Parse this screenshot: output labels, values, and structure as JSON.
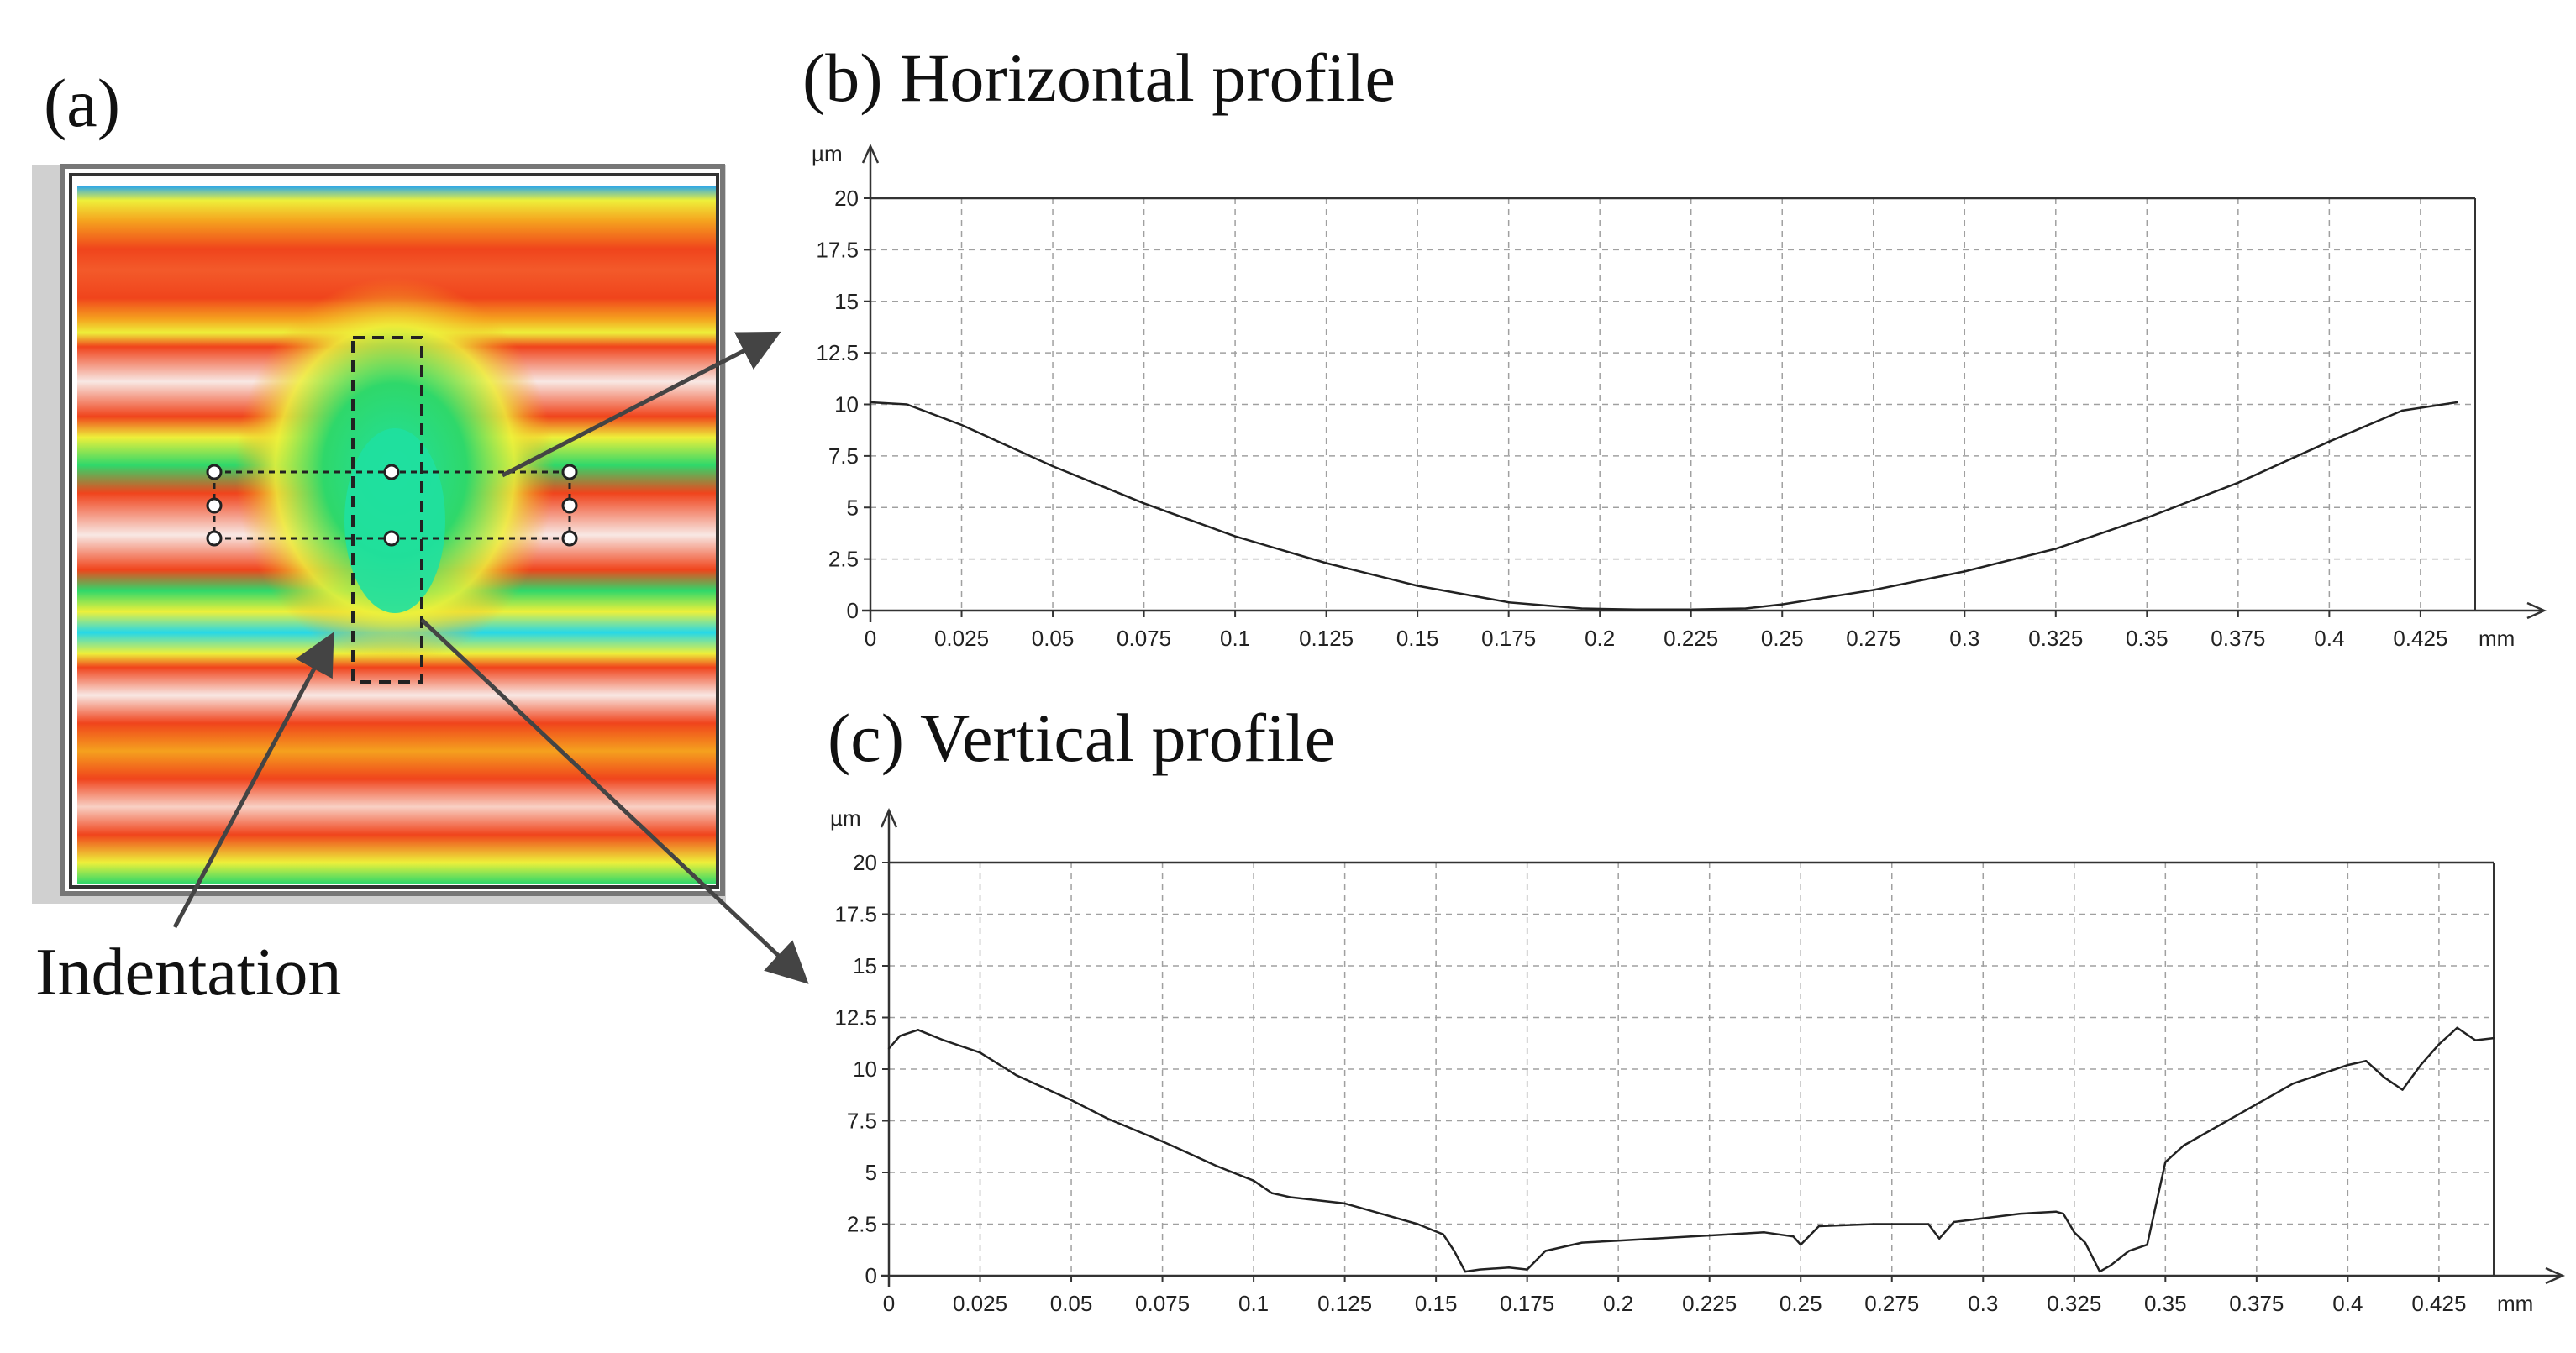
{
  "labels": {
    "panel_a": "(a)",
    "indentation": "Indentation"
  },
  "colors": {
    "map_red": "#f0441c",
    "map_orange": "#f5a11e",
    "map_yellow": "#eef03a",
    "map_green": "#2fd86a",
    "map_cyan": "#26d8e8",
    "map_white": "#f8e8e4",
    "arrow": "#444444",
    "grid": "#a0a0a0",
    "curve": "#222222"
  },
  "chart_data": [
    {
      "type": "line",
      "title": "(b) Horizontal profile",
      "ylabel": "µm",
      "xunit": "mm",
      "xlim": [
        0,
        0.44
      ],
      "ylim": [
        0,
        20
      ],
      "grid": true,
      "xticks": [
        "0",
        "0.025",
        "0.05",
        "0.075",
        "0.1",
        "0.125",
        "0.15",
        "0.175",
        "0.2",
        "0.225",
        "0.25",
        "0.275",
        "0.3",
        "0.325",
        "0.35",
        "0.375",
        "0.4",
        "0.425"
      ],
      "yticks": [
        "0",
        "2.5",
        "5",
        "7.5",
        "10",
        "12.5",
        "15",
        "17.5",
        "20"
      ],
      "x": [
        0,
        0.01,
        0.025,
        0.05,
        0.075,
        0.1,
        0.125,
        0.15,
        0.175,
        0.195,
        0.21,
        0.225,
        0.24,
        0.25,
        0.275,
        0.3,
        0.325,
        0.35,
        0.375,
        0.4,
        0.42,
        0.435
      ],
      "y": [
        10.1,
        10.0,
        9.0,
        7.0,
        5.2,
        3.6,
        2.3,
        1.2,
        0.4,
        0.1,
        0.05,
        0.05,
        0.1,
        0.3,
        1.0,
        1.9,
        3.0,
        4.5,
        6.2,
        8.2,
        9.7,
        10.1
      ]
    },
    {
      "type": "line",
      "title": "(c) Vertical profile",
      "ylabel": "µm",
      "xunit": "mm",
      "xlim": [
        0,
        0.44
      ],
      "ylim": [
        0,
        20
      ],
      "grid": true,
      "xticks": [
        "0",
        "0.025",
        "0.05",
        "0.075",
        "0.1",
        "0.125",
        "0.15",
        "0.175",
        "0.2",
        "0.225",
        "0.25",
        "0.275",
        "0.3",
        "0.325",
        "0.35",
        "0.375",
        "0.4",
        "0.425"
      ],
      "yticks": [
        "0",
        "2.5",
        "5",
        "7.5",
        "10",
        "12.5",
        "15",
        "17.5",
        "20"
      ],
      "x": [
        0,
        0.003,
        0.008,
        0.015,
        0.025,
        0.035,
        0.05,
        0.06,
        0.075,
        0.09,
        0.1,
        0.105,
        0.11,
        0.125,
        0.135,
        0.145,
        0.152,
        0.155,
        0.158,
        0.162,
        0.17,
        0.175,
        0.18,
        0.19,
        0.2,
        0.22,
        0.24,
        0.248,
        0.25,
        0.255,
        0.27,
        0.285,
        0.288,
        0.292,
        0.31,
        0.32,
        0.322,
        0.325,
        0.328,
        0.332,
        0.335,
        0.34,
        0.345,
        0.35,
        0.355,
        0.37,
        0.385,
        0.4,
        0.405,
        0.41,
        0.415,
        0.42,
        0.425,
        0.43,
        0.435,
        0.44
      ],
      "y": [
        11.0,
        11.6,
        11.9,
        11.4,
        10.8,
        9.7,
        8.5,
        7.6,
        6.5,
        5.3,
        4.6,
        4.0,
        3.8,
        3.5,
        3.0,
        2.5,
        2.0,
        1.2,
        0.2,
        0.3,
        0.4,
        0.3,
        1.2,
        1.6,
        1.7,
        1.9,
        2.1,
        1.9,
        1.5,
        2.4,
        2.5,
        2.5,
        1.8,
        2.6,
        3.0,
        3.1,
        3.0,
        2.1,
        1.6,
        0.2,
        0.5,
        1.2,
        1.5,
        5.5,
        6.3,
        7.8,
        9.3,
        10.2,
        10.4,
        9.6,
        9.0,
        10.2,
        11.2,
        12.0,
        11.4,
        11.5
      ]
    }
  ]
}
